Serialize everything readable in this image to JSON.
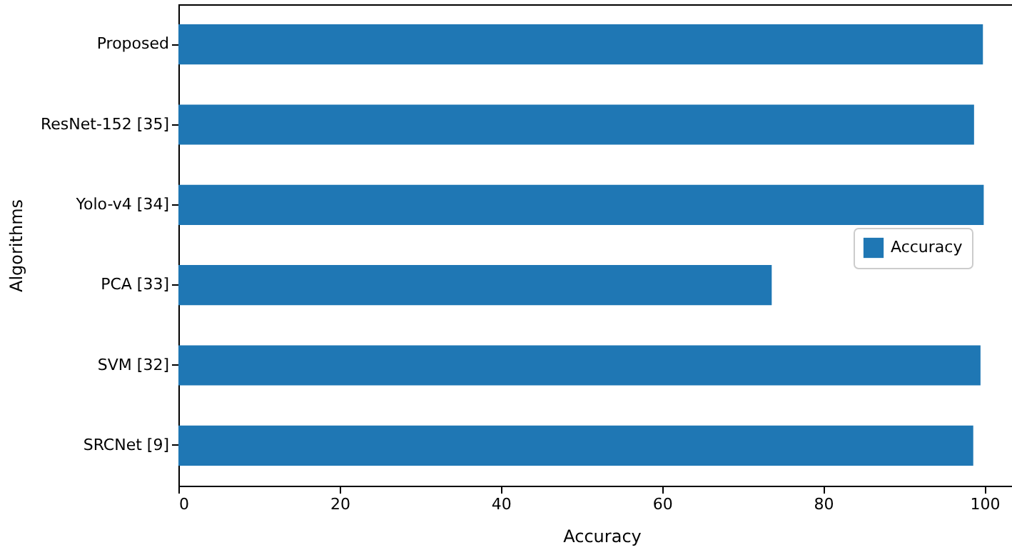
{
  "chart_data": {
    "type": "bar",
    "orientation": "horizontal",
    "xlabel": "Accuracy",
    "ylabel": "Algorithms",
    "categories": [
      "Proposed",
      "ResNet-152 [35]",
      "Yolo-v4 [34]",
      "PCA [33]",
      "SVM [32]",
      "SRCNet [9]"
    ],
    "series": [
      {
        "name": "Accuracy",
        "color": "#1f77b4",
        "values": [
          99.8,
          98.7,
          99.9,
          73.6,
          99.5,
          98.6
        ]
      }
    ],
    "xlim": [
      0,
      105
    ],
    "xticks": [
      0,
      20,
      40,
      60,
      80,
      100
    ],
    "grid": false,
    "legend": "right"
  }
}
